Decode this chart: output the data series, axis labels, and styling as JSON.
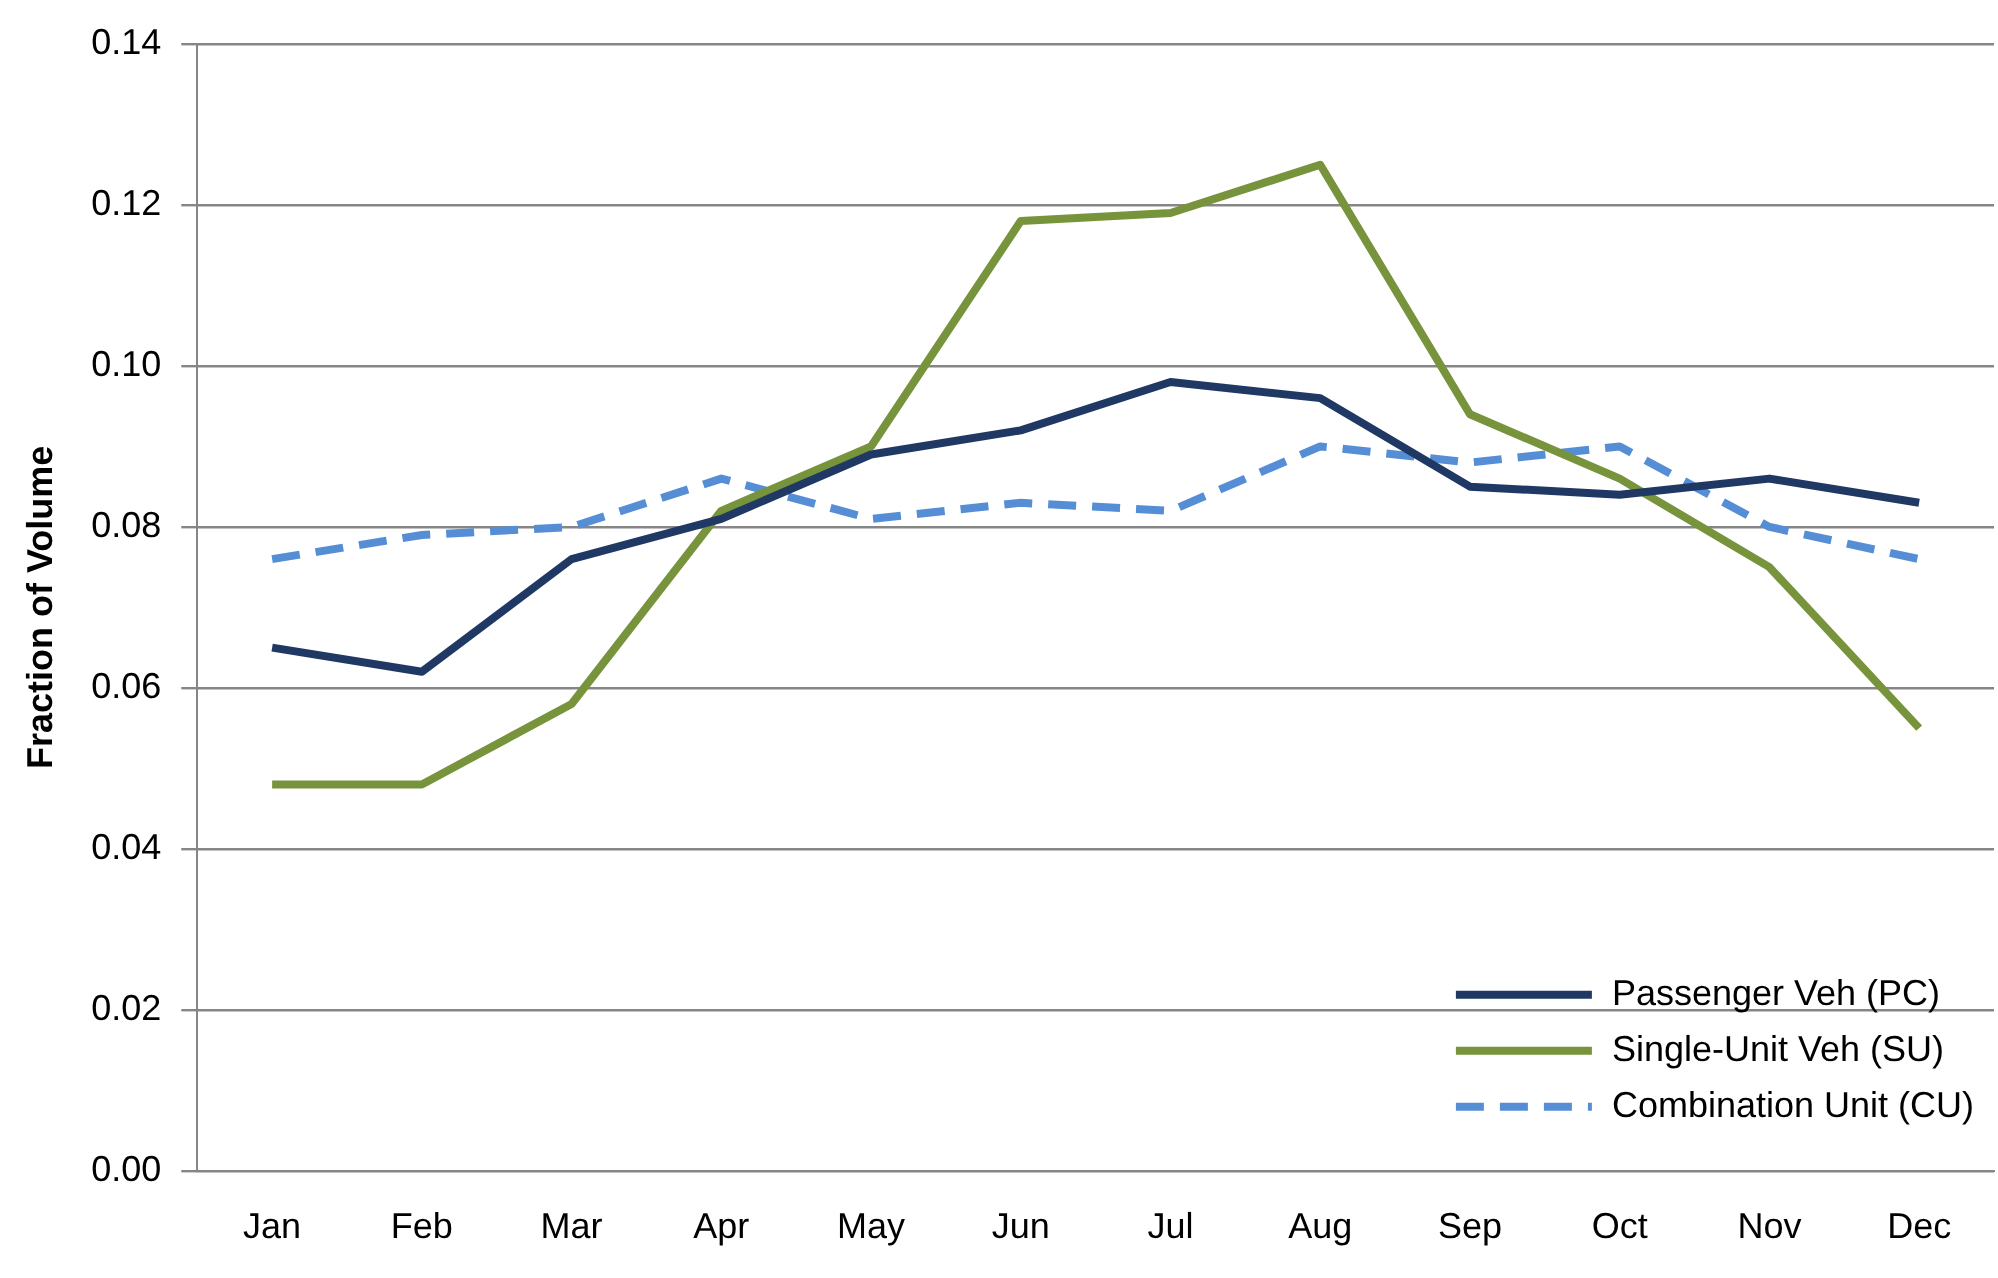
{
  "chart_data": {
    "type": "line",
    "ylabel": "Fraction of Volume",
    "categories": [
      "Jan",
      "Feb",
      "Mar",
      "Apr",
      "May",
      "Jun",
      "Jul",
      "Aug",
      "Sep",
      "Oct",
      "Nov",
      "Dec"
    ],
    "series": [
      {
        "name": "Passenger Veh (PC)",
        "color": "#1f3864",
        "line_style": "solid",
        "values": [
          0.065,
          0.062,
          0.076,
          0.081,
          0.089,
          0.092,
          0.098,
          0.096,
          0.085,
          0.084,
          0.086,
          0.083
        ]
      },
      {
        "name": "Single-Unit Veh (SU)",
        "color": "#77933c",
        "line_style": "solid",
        "values": [
          0.048,
          0.048,
          0.058,
          0.082,
          0.09,
          0.118,
          0.119,
          0.125,
          0.094,
          0.086,
          0.075,
          0.055
        ]
      },
      {
        "name": "Combination Unit (CU)",
        "color": "#558ed5",
        "line_style": "dashed",
        "values": [
          0.076,
          0.079,
          0.08,
          0.086,
          0.081,
          0.083,
          0.082,
          0.09,
          0.088,
          0.09,
          0.08,
          0.076
        ]
      }
    ],
    "ylim": [
      0,
      0.14
    ],
    "yticks": [
      {
        "value": 0,
        "label": "0.00"
      },
      {
        "value": 0.02,
        "label": "0.02"
      },
      {
        "value": 0.04,
        "label": "0.04"
      },
      {
        "value": 0.06,
        "label": "0.06"
      },
      {
        "value": 0.08,
        "label": "0.08"
      },
      {
        "value": 0.1,
        "label": "0.10"
      },
      {
        "value": 0.12,
        "label": "0.12"
      },
      {
        "value": 0.14,
        "label": "0.14"
      }
    ],
    "grid": "y",
    "legend": "bottom right",
    "marker": "none"
  }
}
